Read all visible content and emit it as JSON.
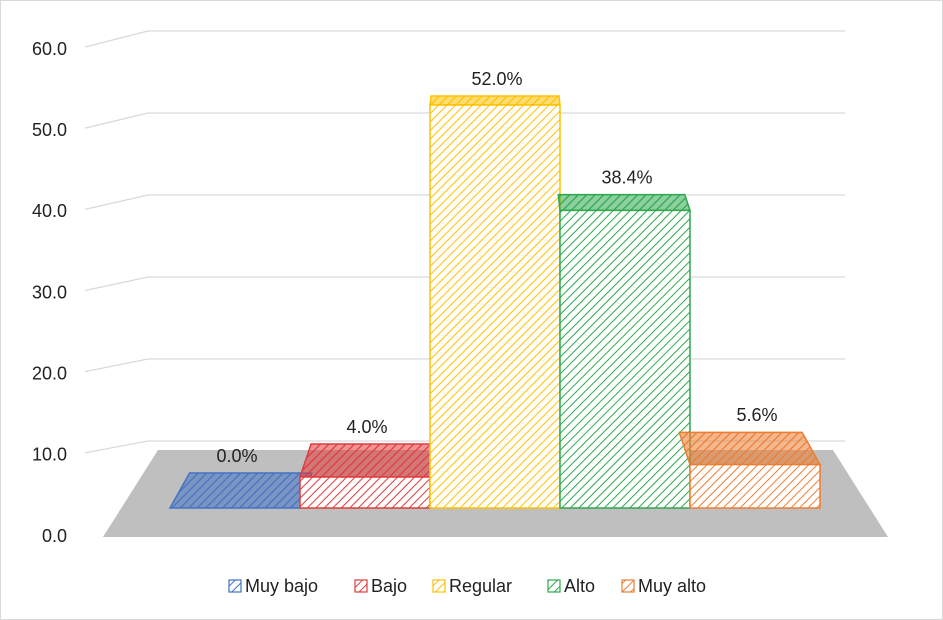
{
  "chart_data": {
    "type": "bar3d",
    "series": [
      {
        "name": "Muy bajo",
        "color": "#4472c4",
        "values": [
          0
        ],
        "value_labels": [
          "0.0%"
        ]
      },
      {
        "name": "Bajo",
        "color": "#e03c3c",
        "values": [
          4
        ],
        "value_labels": [
          "4.0%"
        ]
      },
      {
        "name": "Regular",
        "color": "#ffc000",
        "values": [
          52
        ],
        "value_labels": [
          "52.0%"
        ]
      },
      {
        "name": "Alto",
        "color": "#2fa84f",
        "values": [
          38.4
        ],
        "value_labels": [
          "38.4%"
        ]
      },
      {
        "name": "Muy alto",
        "color": "#ed7d31",
        "values": [
          5.6
        ],
        "value_labels": [
          "5.6%"
        ]
      }
    ],
    "ylim": [
      0,
      60
    ],
    "yticks": [
      {
        "value": 0,
        "label": "0.0"
      },
      {
        "value": 10,
        "label": "10.0"
      },
      {
        "value": 20,
        "label": "20.0"
      },
      {
        "value": 30,
        "label": "30.0"
      },
      {
        "value": 40,
        "label": "40.0"
      },
      {
        "value": 50,
        "label": "50.0"
      },
      {
        "value": 60,
        "label": "60.0"
      }
    ],
    "grid": true,
    "legend": "bottom"
  }
}
